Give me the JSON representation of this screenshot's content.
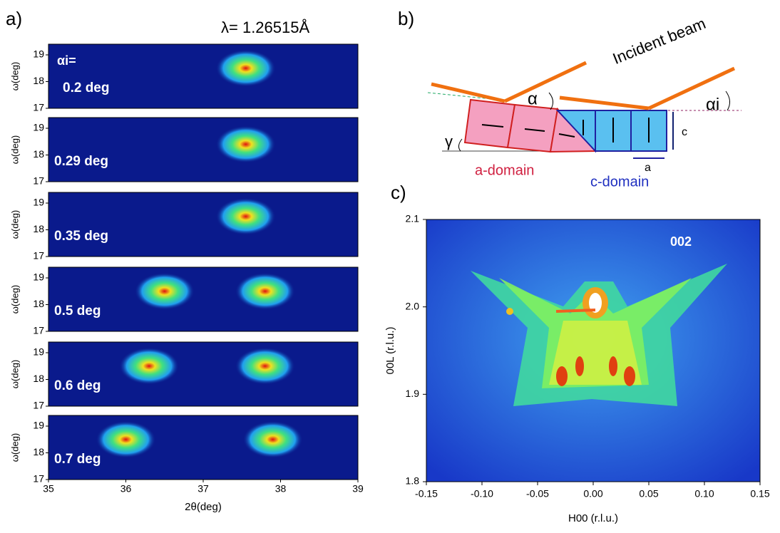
{
  "panel_a": {
    "label": "a)",
    "wavelength": "λ= 1.26515Å",
    "angle_label": "αi=",
    "xlabel": "2θ(deg)",
    "ylabel": "ω(deg)",
    "xlim": [
      35,
      39
    ],
    "xticks": [
      35,
      36,
      37,
      38,
      39
    ],
    "ylim": [
      17,
      19.4
    ],
    "yticks": [
      17,
      18,
      19
    ],
    "maps": [
      {
        "label": "0.2 deg",
        "peaks": [
          {
            "x": 37.55,
            "y": 18.5
          }
        ]
      },
      {
        "label": "0.29 deg",
        "peaks": [
          {
            "x": 37.55,
            "y": 18.4
          }
        ]
      },
      {
        "label": "0.35 deg",
        "peaks": [
          {
            "x": 37.55,
            "y": 18.5
          }
        ]
      },
      {
        "label": "0.5 deg",
        "peaks": [
          {
            "x": 36.5,
            "y": 18.5
          },
          {
            "x": 37.8,
            "y": 18.5
          }
        ]
      },
      {
        "label": "0.6 deg",
        "peaks": [
          {
            "x": 36.3,
            "y": 18.5
          },
          {
            "x": 37.8,
            "y": 18.5
          }
        ]
      },
      {
        "label": "0.7 deg",
        "peaks": [
          {
            "x": 36.0,
            "y": 18.5
          },
          {
            "x": 37.9,
            "y": 18.5
          }
        ]
      }
    ]
  },
  "panel_b": {
    "label": "b)",
    "beam": "Incident beam",
    "alpha": "α",
    "alpha_i": "αi",
    "gamma": "γ",
    "c": "c",
    "a": "a",
    "a_domain": "a-domain",
    "c_domain": "c-domain"
  },
  "panel_c": {
    "label": "c)",
    "annotation": "002",
    "xlabel": "H00 (r.l.u.)",
    "ylabel": "00L (r.l.u.)",
    "xlim": [
      -0.15,
      0.15
    ],
    "xticks": [
      -0.15,
      {
        "value": -0.1,
        "label": "-0.10"
      },
      -0.05,
      {
        "value": 0,
        "label": "0.00"
      },
      0.05,
      {
        "value": 0.1,
        "label": "0.10"
      },
      0.15
    ],
    "ylim": [
      1.8,
      2.1
    ],
    "yticks": [
      1.8,
      1.9,
      {
        "value": 2,
        "label": "2.0"
      },
      2.1
    ]
  }
}
